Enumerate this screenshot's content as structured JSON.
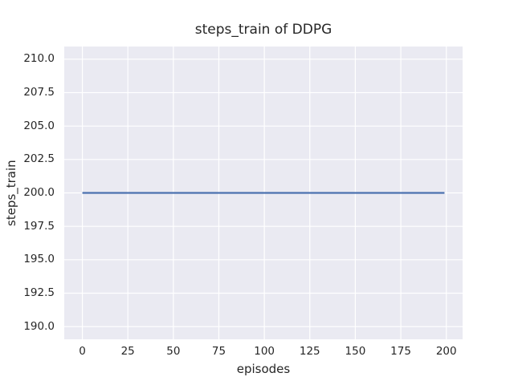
{
  "figure": {
    "title": "steps_train of DDPG",
    "xlabel": "episodes",
    "ylabel": "steps_train"
  },
  "chart_data": {
    "type": "line",
    "title": "steps_train of DDPG",
    "xlabel": "episodes",
    "ylabel": "steps_train",
    "series": [
      {
        "name": "steps_train",
        "color": "#4C72B0",
        "points": [
          [
            0,
            200
          ],
          [
            199,
            200
          ]
        ]
      }
    ],
    "xticks": [
      {
        "v": 0,
        "label": "0"
      },
      {
        "v": 25,
        "label": "25"
      },
      {
        "v": 50,
        "label": "50"
      },
      {
        "v": 75,
        "label": "75"
      },
      {
        "v": 100,
        "label": "100"
      },
      {
        "v": 125,
        "label": "125"
      },
      {
        "v": 150,
        "label": "150"
      },
      {
        "v": 175,
        "label": "175"
      },
      {
        "v": 200,
        "label": "200"
      }
    ],
    "yticks": [
      {
        "v": 210.0,
        "label": "210.0"
      },
      {
        "v": 207.5,
        "label": "207.5"
      },
      {
        "v": 205.0,
        "label": "205.0"
      },
      {
        "v": 202.5,
        "label": "202.5"
      },
      {
        "v": 200.0,
        "label": "200.0"
      },
      {
        "v": 197.5,
        "label": "197.5"
      },
      {
        "v": 195.0,
        "label": "195.0"
      },
      {
        "v": 192.5,
        "label": "192.5"
      },
      {
        "v": 190.0,
        "label": "190.0"
      }
    ],
    "xlim": [
      -9.95,
      208.95
    ],
    "ylim": [
      189.05,
      210.95
    ],
    "grid": true,
    "legend": "none",
    "styles": {
      "plot_bg": "#EAEAF2",
      "grid_color": "#FFFFFF",
      "line_width": 2.2,
      "grid_width": 1.2,
      "text_color": "#262626",
      "figure_bg": "#FFFFFF"
    }
  }
}
